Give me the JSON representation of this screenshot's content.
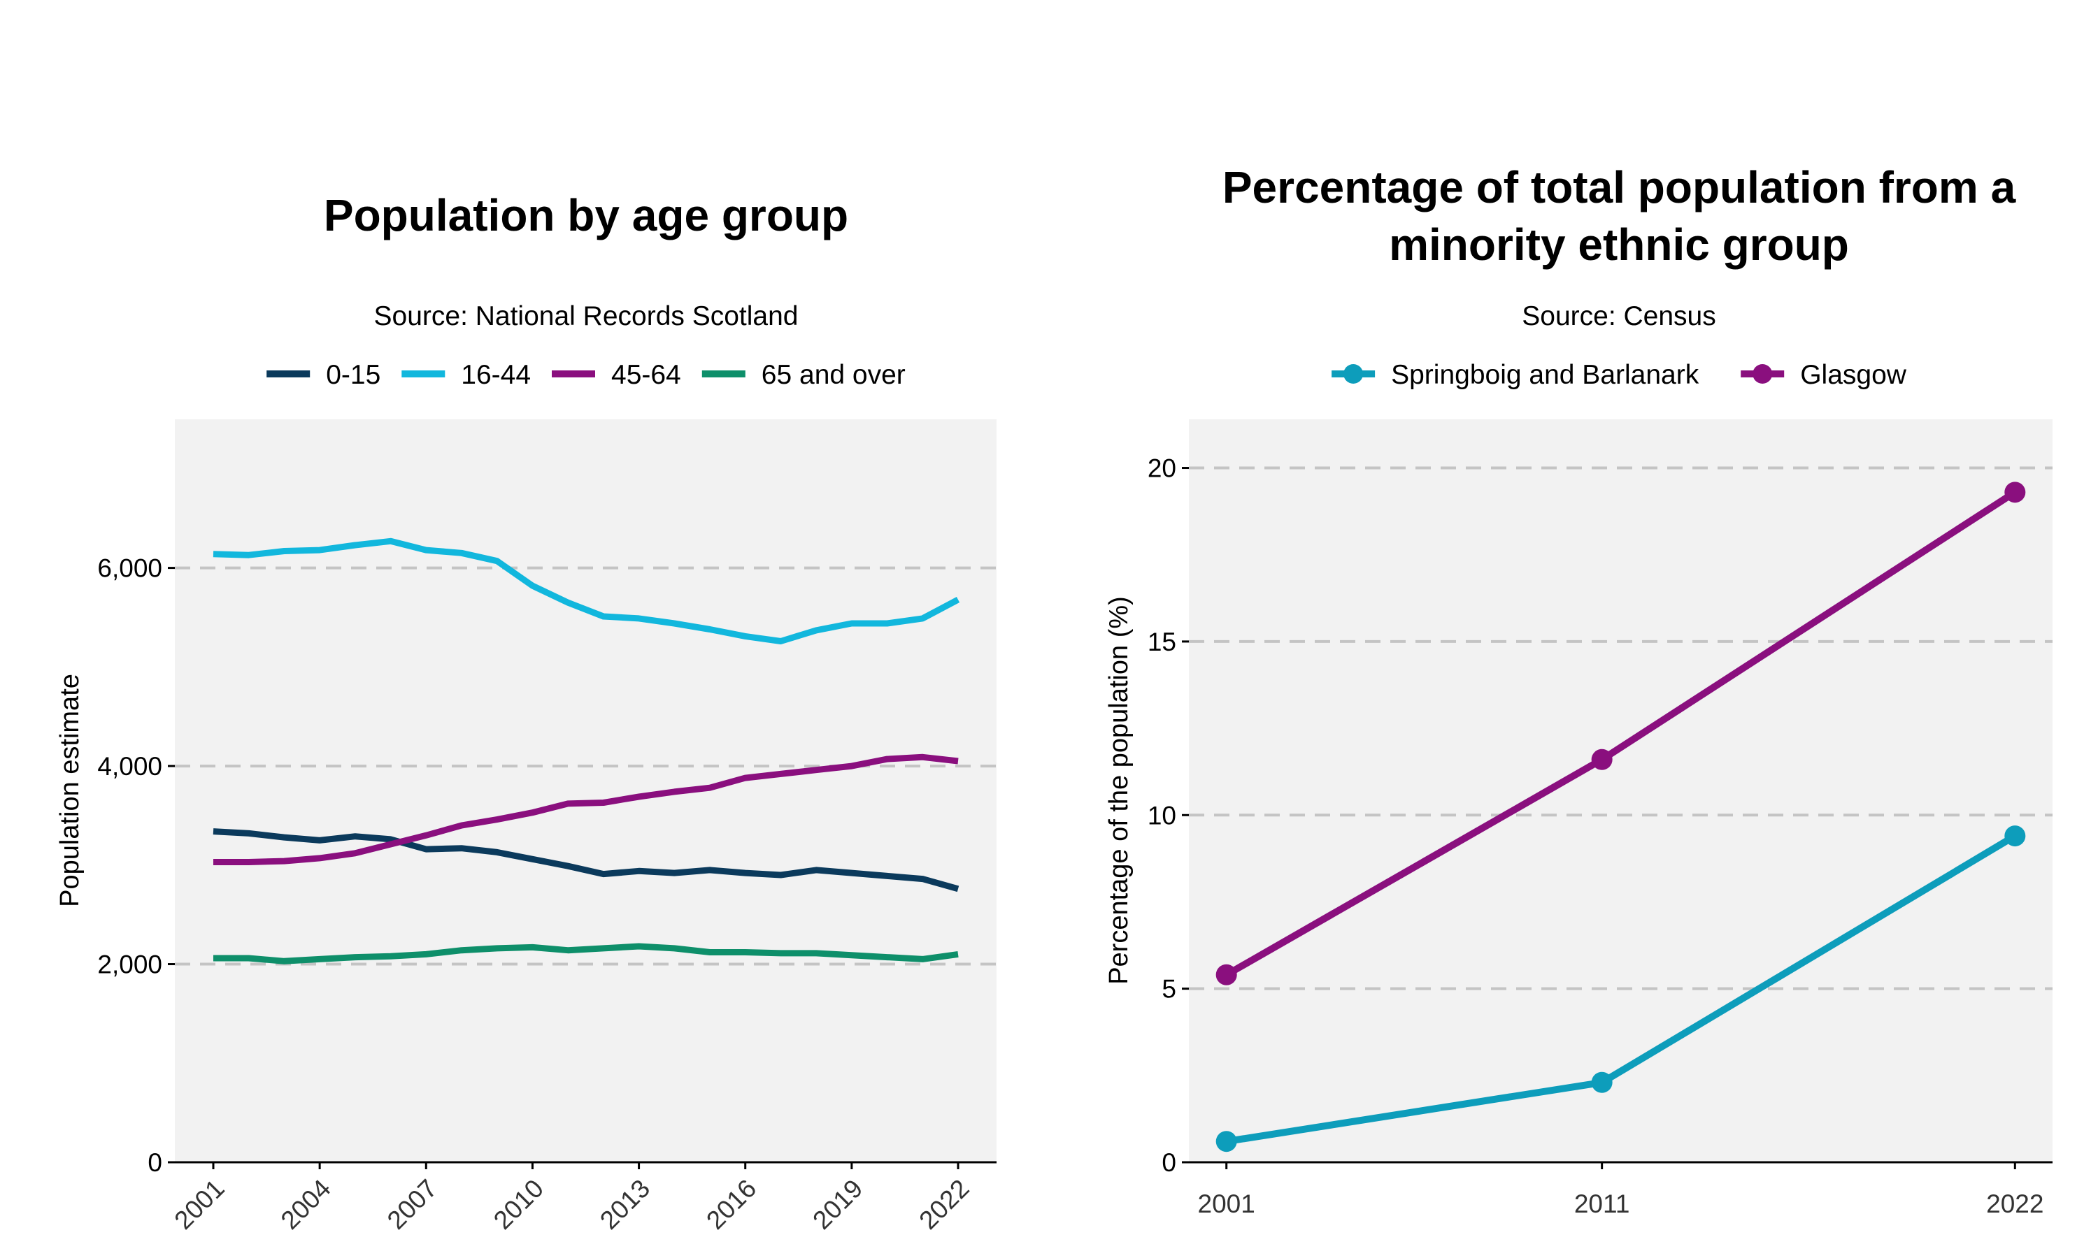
{
  "chart_data": [
    {
      "type": "line",
      "title": "Population by age group",
      "subtitle": "Source: National Records Scotland",
      "xlabel": "",
      "ylabel": "Population estimate",
      "xlim": [
        2001,
        2022
      ],
      "ylim": [
        0,
        7500
      ],
      "x": [
        2001,
        2002,
        2003,
        2004,
        2005,
        2006,
        2007,
        2008,
        2009,
        2010,
        2011,
        2012,
        2013,
        2014,
        2015,
        2016,
        2017,
        2018,
        2019,
        2020,
        2021,
        2022
      ],
      "x_ticks": [
        2001,
        2004,
        2007,
        2010,
        2013,
        2016,
        2019,
        2022
      ],
      "x_tick_labels": [
        "2001",
        "2004",
        "2007",
        "2010",
        "2013",
        "2016",
        "2019",
        "2022"
      ],
      "y_ticks": [
        0,
        2000,
        4000,
        6000
      ],
      "y_tick_labels": [
        "0",
        "2,000",
        "4,000",
        "6,000"
      ],
      "grid": "horizontal dashed",
      "legend_position": "top",
      "series": [
        {
          "name": "0-15",
          "color": "#0b3a5c",
          "values": [
            3340,
            3320,
            3280,
            3250,
            3290,
            3260,
            3160,
            3170,
            3130,
            3060,
            2990,
            2910,
            2940,
            2920,
            2950,
            2920,
            2900,
            2950,
            2920,
            2890,
            2860,
            2760
          ]
        },
        {
          "name": "16-44",
          "color": "#12b7dd",
          "values": [
            6140,
            6130,
            6170,
            6180,
            6230,
            6270,
            6180,
            6150,
            6070,
            5820,
            5650,
            5510,
            5490,
            5440,
            5380,
            5310,
            5260,
            5370,
            5440,
            5440,
            5490,
            5680
          ]
        },
        {
          "name": "45-64",
          "color": "#8a0f7e",
          "values": [
            3030,
            3030,
            3040,
            3070,
            3120,
            3210,
            3300,
            3400,
            3460,
            3530,
            3620,
            3630,
            3690,
            3740,
            3780,
            3880,
            3920,
            3960,
            4000,
            4070,
            4090,
            4050
          ]
        },
        {
          "name": "65 and over",
          "color": "#0e8f6a",
          "values": [
            2060,
            2060,
            2030,
            2050,
            2070,
            2080,
            2100,
            2140,
            2160,
            2170,
            2140,
            2160,
            2180,
            2160,
            2120,
            2120,
            2110,
            2110,
            2090,
            2070,
            2050,
            2100
          ]
        }
      ]
    },
    {
      "type": "line",
      "title": "Percentage of total population from a minority ethnic group",
      "title_lines": [
        "Percentage of total population from a",
        "minority ethnic group"
      ],
      "subtitle": "Source: Census",
      "xlabel": "",
      "ylabel": "Percentage of the population (%)",
      "x": [
        2001,
        2011,
        2022
      ],
      "xlim": [
        2000,
        2023
      ],
      "ylim": [
        0,
        21.4
      ],
      "x_tick_labels": [
        "2001",
        "2011",
        "2022"
      ],
      "y_ticks": [
        0,
        5,
        10,
        15,
        20
      ],
      "y_tick_labels": [
        "0",
        "5",
        "10",
        "15",
        "20"
      ],
      "grid": "horizontal dashed",
      "legend_position": "top",
      "markers": true,
      "series": [
        {
          "name": "Springboig and Barlanark",
          "color": "#0d9dbb",
          "values": [
            0.6,
            2.3,
            9.4
          ]
        },
        {
          "name": "Glasgow",
          "color": "#8a0f7e",
          "values": [
            5.4,
            11.6,
            19.3
          ]
        }
      ]
    }
  ]
}
